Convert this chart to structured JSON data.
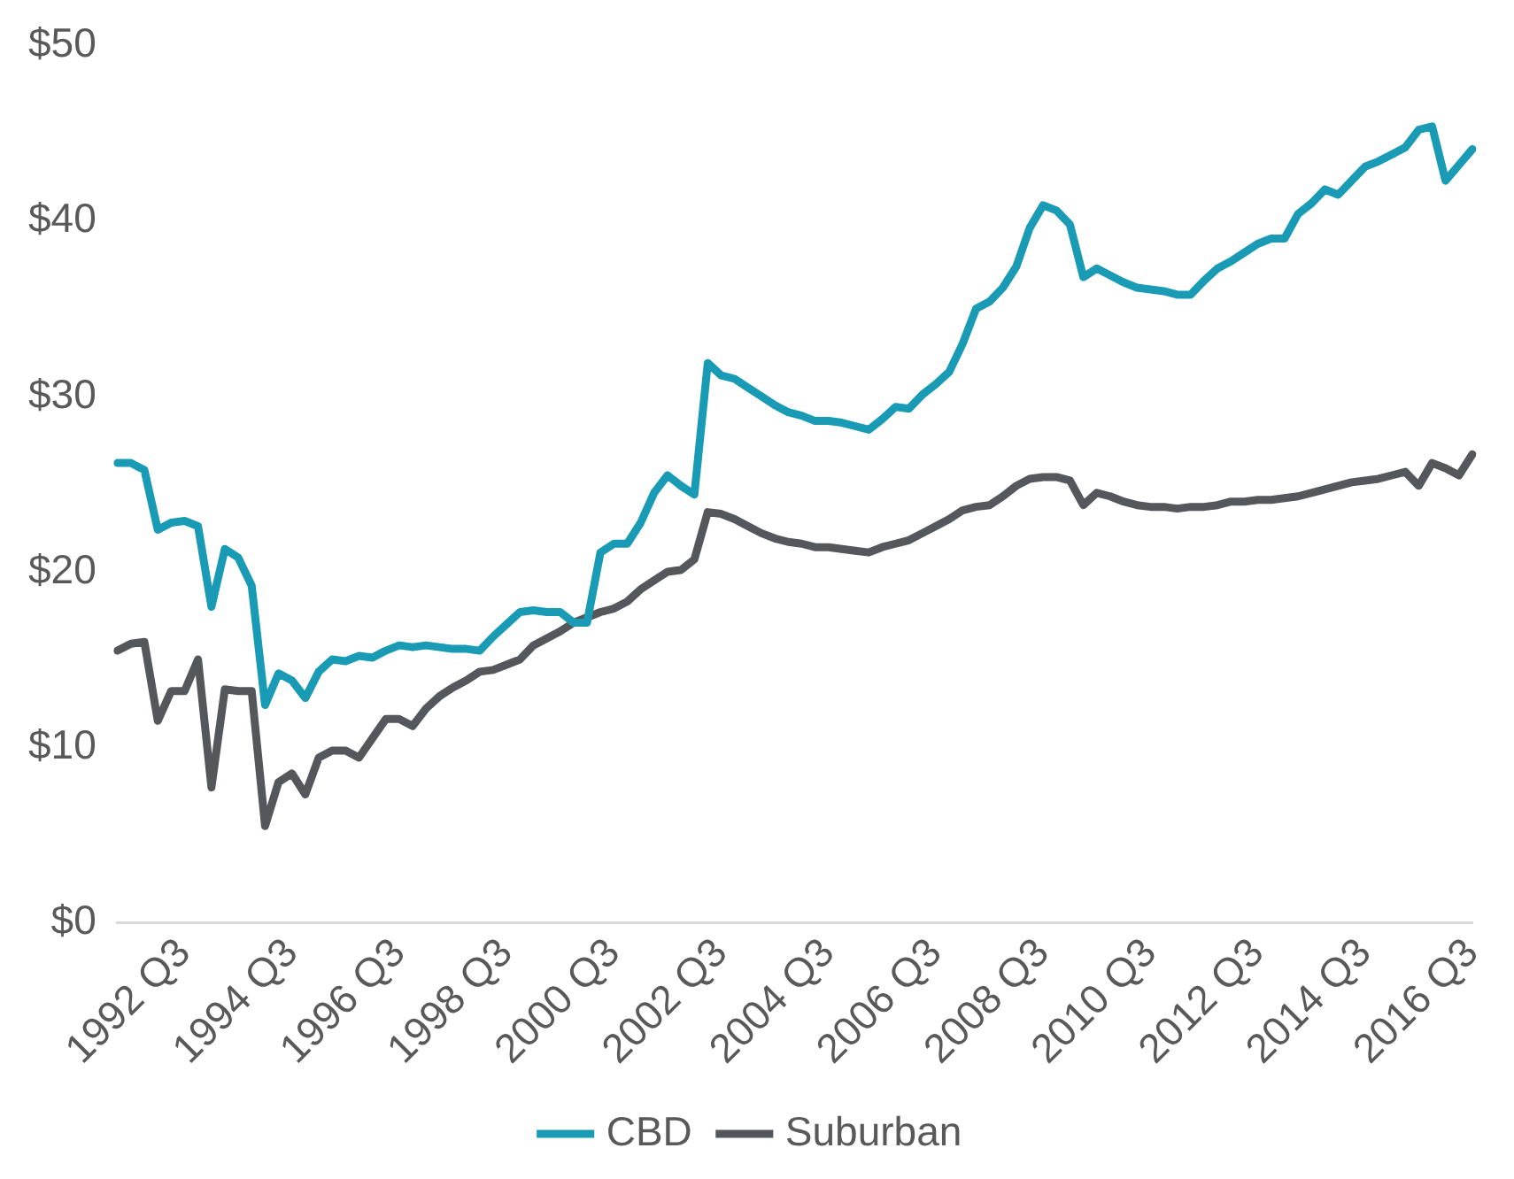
{
  "chart_data": {
    "type": "line",
    "categories": [
      null,
      null,
      null,
      null,
      null,
      "1992 Q3",
      null,
      null,
      null,
      null,
      null,
      null,
      null,
      "1994 Q3",
      null,
      null,
      null,
      null,
      null,
      null,
      null,
      "1996 Q3",
      null,
      null,
      null,
      null,
      null,
      null,
      null,
      "1998 Q3",
      null,
      null,
      null,
      null,
      null,
      null,
      null,
      "2000 Q3",
      null,
      null,
      null,
      null,
      null,
      null,
      null,
      "2002 Q3",
      null,
      null,
      null,
      null,
      null,
      null,
      null,
      "2004 Q3",
      null,
      null,
      null,
      null,
      null,
      null,
      null,
      "2006 Q3",
      null,
      null,
      null,
      null,
      null,
      null,
      null,
      "2008 Q3",
      null,
      null,
      null,
      null,
      null,
      null,
      null,
      "2010 Q3",
      null,
      null,
      null,
      null,
      null,
      null,
      null,
      "2012 Q3",
      null,
      null,
      null,
      null,
      null,
      null,
      null,
      "2014 Q3",
      null,
      null,
      null,
      null,
      null,
      null,
      null,
      "2016 Q3"
    ],
    "series": [
      {
        "name": "CBD",
        "color": "#1a9bb5",
        "values": [
          26.2,
          26.2,
          25.8,
          22.4,
          22.8,
          22.9,
          22.6,
          18,
          21.3,
          20.8,
          19.2,
          12.4,
          14.2,
          13.8,
          12.8,
          14.3,
          15,
          14.9,
          15.2,
          15.1,
          15.5,
          15.8,
          15.7,
          15.8,
          15.7,
          15.6,
          15.6,
          15.5,
          16.3,
          17,
          17.7,
          17.8,
          17.7,
          17.7,
          17.1,
          17.1,
          21.1,
          21.6,
          21.6,
          22.8,
          24.5,
          25.5,
          24.9,
          24.4,
          31.9,
          31.2,
          31,
          30.5,
          30,
          29.5,
          29.1,
          28.9,
          28.6,
          28.6,
          28.5,
          28.3,
          28.1,
          28.7,
          29.4,
          29.3,
          30.1,
          30.7,
          31.4,
          33,
          35,
          35.4,
          36.2,
          37.4,
          39.6,
          40.9,
          40.6,
          39.8,
          36.8,
          37.3,
          36.9,
          36.5,
          36.2,
          36.1,
          36,
          35.8,
          35.8,
          36.6,
          37.3,
          37.7,
          38.2,
          38.7,
          39,
          39,
          40.4,
          41,
          41.8,
          41.5,
          42.3,
          43.1,
          43.4,
          43.8,
          44.2,
          45.2,
          45.4,
          42.3,
          43.2,
          44.1
        ]
      },
      {
        "name": "Suburban",
        "color": "#54575b",
        "values": [
          15.5,
          15.9,
          16,
          11.5,
          13.2,
          13.2,
          15,
          7.7,
          13.3,
          13.2,
          13.2,
          5.5,
          8,
          8.5,
          7.3,
          9.4,
          9.8,
          9.8,
          9.4,
          10.5,
          11.6,
          11.6,
          11.2,
          12.2,
          12.9,
          13.4,
          13.8,
          14.3,
          14.4,
          14.7,
          15,
          15.8,
          16.2,
          16.6,
          17.1,
          17.4,
          17.7,
          17.9,
          18.3,
          19,
          19.5,
          20,
          20.1,
          20.7,
          23.4,
          23.3,
          23,
          22.6,
          22.2,
          21.9,
          21.7,
          21.6,
          21.4,
          21.4,
          21.3,
          21.2,
          21.1,
          21.4,
          21.6,
          21.8,
          22.2,
          22.6,
          23,
          23.5,
          23.7,
          23.8,
          24.3,
          24.9,
          25.3,
          25.4,
          25.4,
          25.2,
          23.8,
          24.5,
          24.3,
          24,
          23.8,
          23.7,
          23.7,
          23.6,
          23.7,
          23.7,
          23.8,
          24,
          24,
          24.1,
          24.1,
          24.2,
          24.3,
          24.5,
          24.7,
          24.9,
          25.1,
          25.2,
          25.3,
          25.5,
          25.7,
          24.9,
          26.2,
          25.9,
          25.5,
          26.7
        ]
      }
    ],
    "ylim": [
      0,
      50
    ],
    "yticks": [
      {
        "value": 0,
        "label": "$0"
      },
      {
        "value": 10,
        "label": "$10"
      },
      {
        "value": 20,
        "label": "$20"
      },
      {
        "value": 30,
        "label": "$30"
      },
      {
        "value": 40,
        "label": "$40"
      },
      {
        "value": 50,
        "label": "$50"
      }
    ],
    "grid": false,
    "legend": "bottom",
    "marker": "none",
    "line_style": "solid"
  }
}
